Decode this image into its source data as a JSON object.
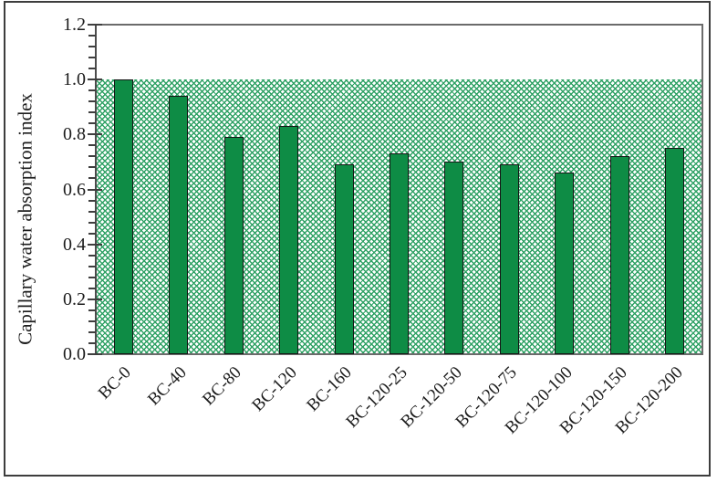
{
  "figure": {
    "background_color": "#ffffff",
    "border_color": "#3d3d3d"
  },
  "chart_data": {
    "type": "bar",
    "title": "",
    "xlabel": "",
    "ylabel": "Capillary water absorption index",
    "categories": [
      "BC-0",
      "BC-40",
      "BC-80",
      "BC-120",
      "BC-160",
      "BC-120-25",
      "BC-120-50",
      "BC-120-75",
      "BC-120-100",
      "BC-120-150",
      "BC-120-200"
    ],
    "values": [
      1.0,
      0.94,
      0.79,
      0.83,
      0.69,
      0.73,
      0.7,
      0.69,
      0.66,
      0.72,
      0.75
    ],
    "ylim": [
      0.0,
      1.2
    ],
    "ytick_labels": [
      "0.0",
      "0.2",
      "0.4",
      "0.6",
      "0.8",
      "1.0",
      "1.2"
    ],
    "ytick_step": 0.2,
    "minor_tick_step": 0.04,
    "grid": false,
    "legend": null,
    "bar_color": "#0e8c45",
    "bar_border_color": "#161616",
    "reference_band": {
      "from": 0.0,
      "to": 1.0,
      "description": "green dotted trellis pattern fill across plot width",
      "pattern_color": "#2ea164"
    }
  }
}
